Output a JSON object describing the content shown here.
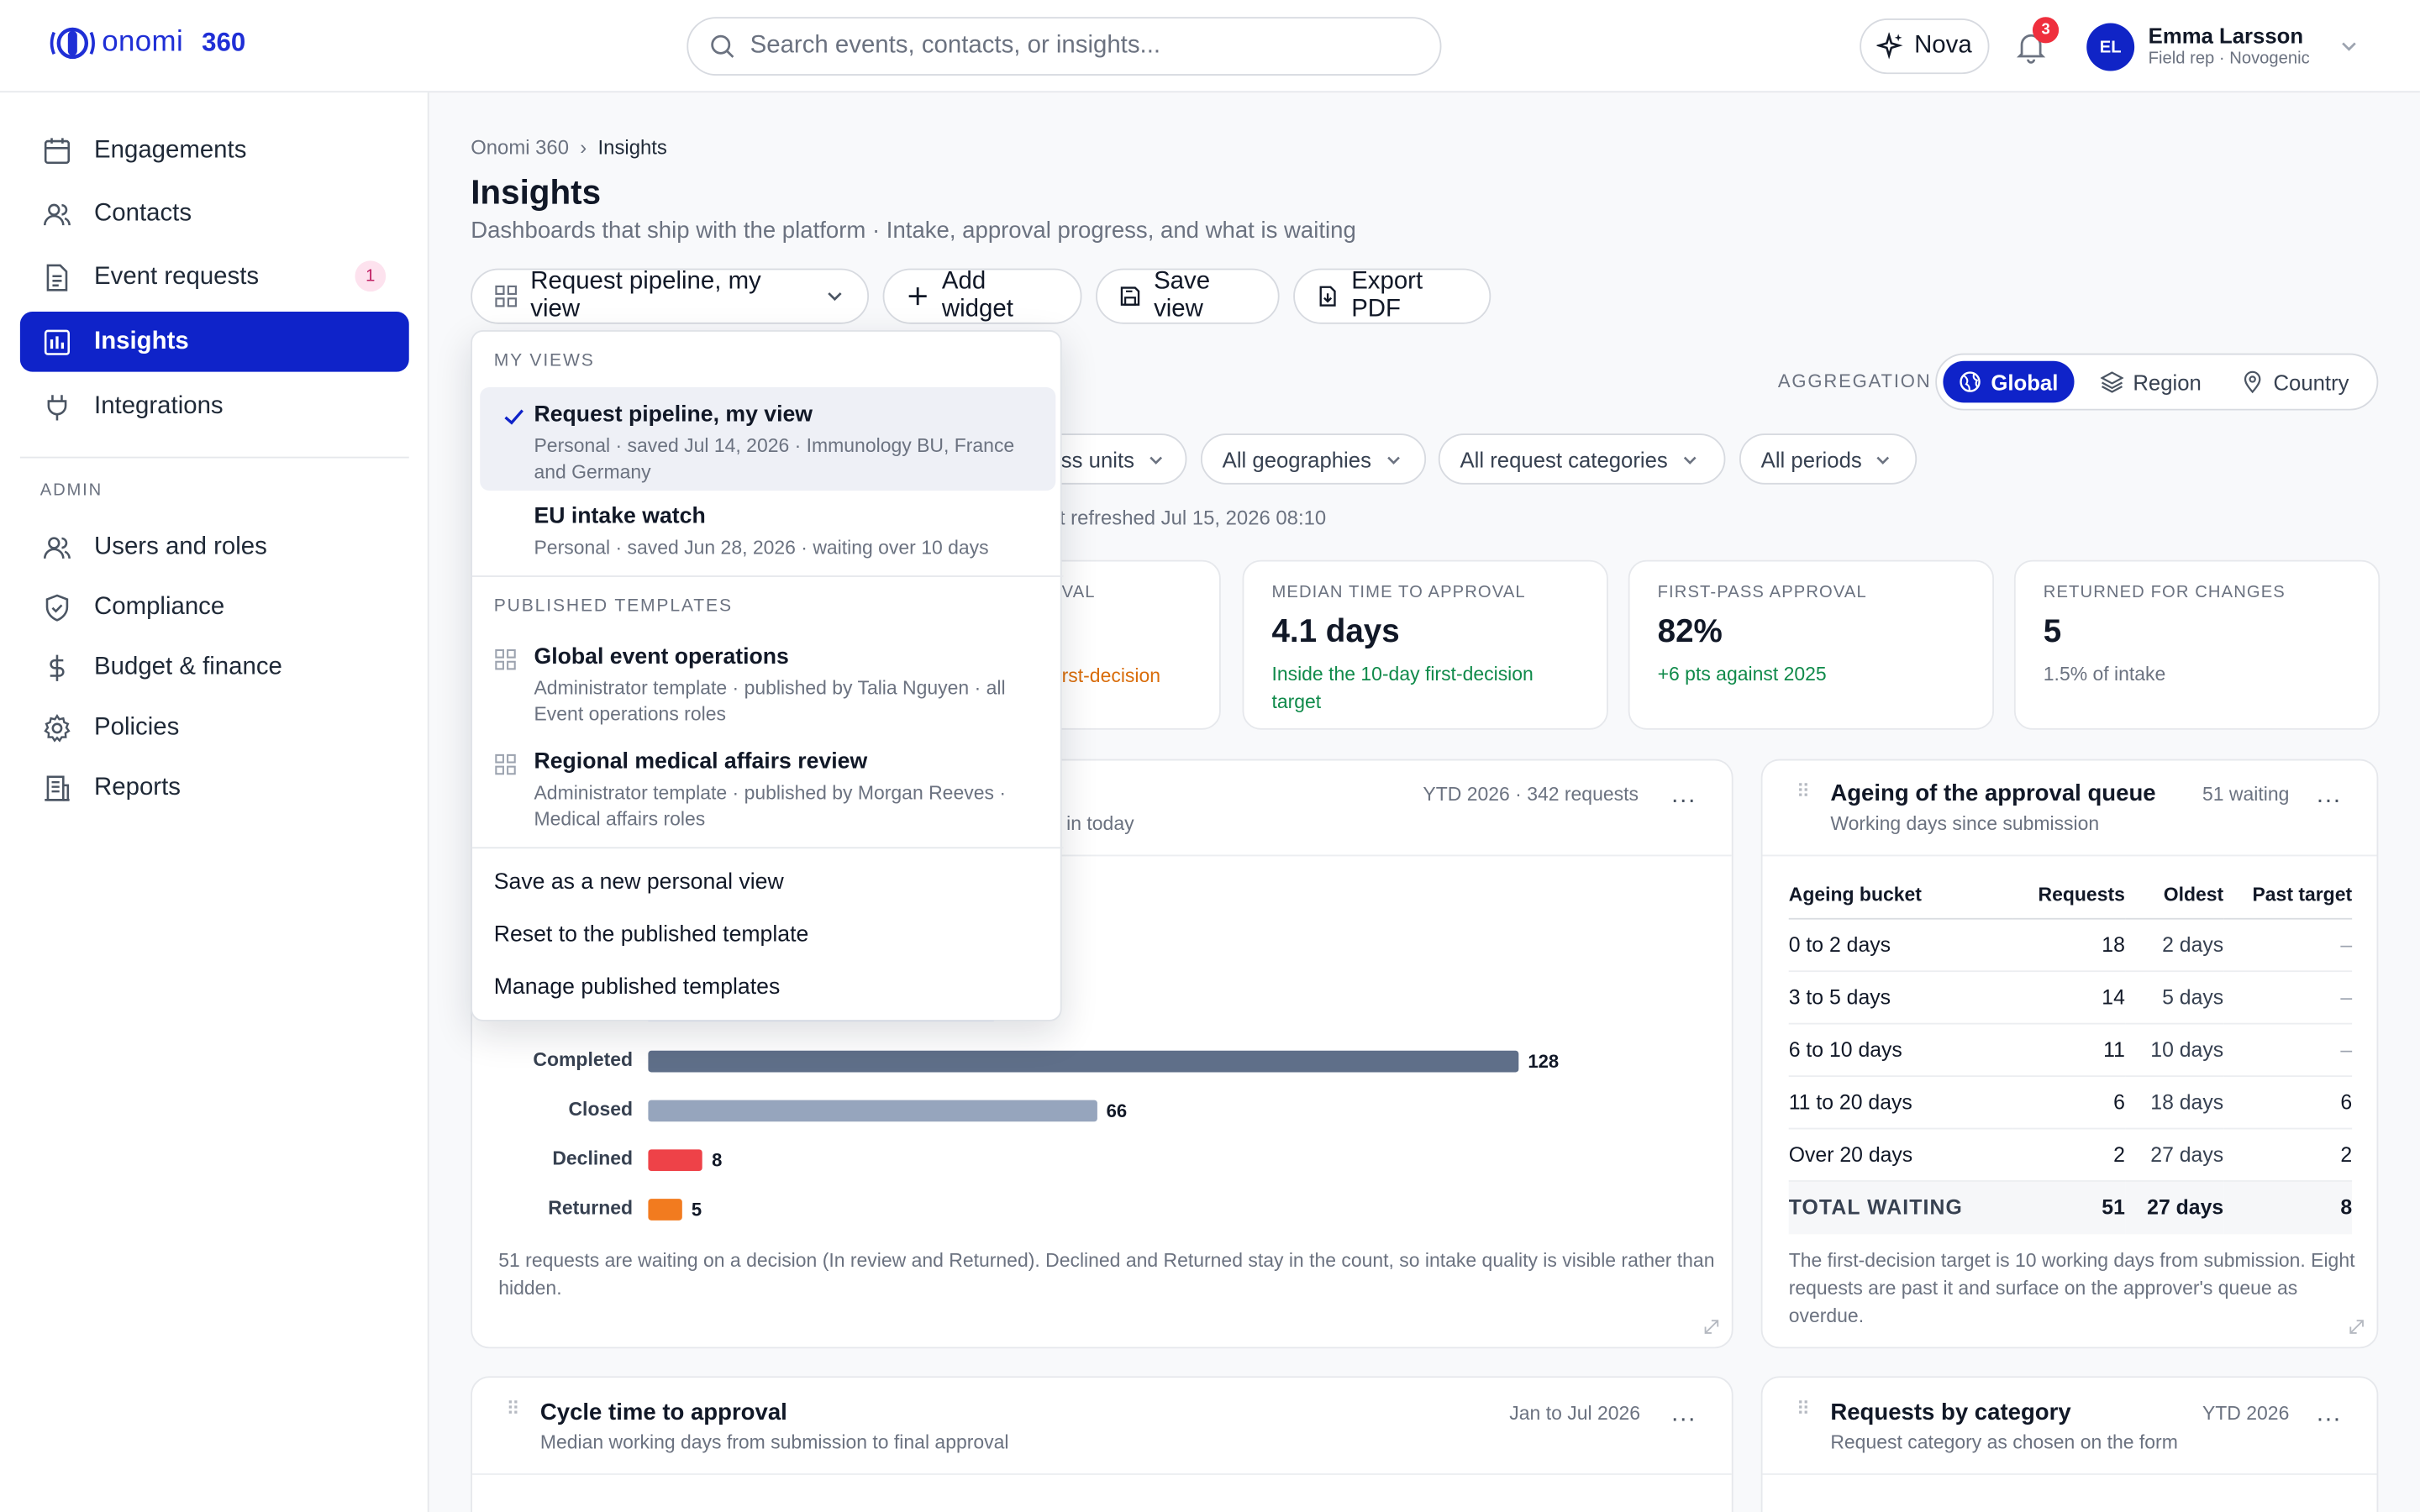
{
  "app": {
    "logo_text": "onomi",
    "logo_suffix": "360"
  },
  "search": {
    "placeholder": "Search events, contacts, or insights..."
  },
  "header": {
    "assistant_label": "Nova",
    "notification_count": "3",
    "user_initials": "EL",
    "user_name": "Emma Larsson",
    "user_role": "Field rep · Novogenic"
  },
  "sidebar": {
    "items": [
      {
        "label": "Engagements",
        "icon": "calendar-icon"
      },
      {
        "label": "Contacts",
        "icon": "users-icon"
      },
      {
        "label": "Event requests",
        "icon": "document-icon",
        "badge": "1"
      },
      {
        "label": "Insights",
        "icon": "bar-chart-icon",
        "active": true
      },
      {
        "label": "Integrations",
        "icon": "plug-icon"
      }
    ],
    "admin_heading": "ADMIN",
    "admin_items": [
      {
        "label": "Users and roles",
        "icon": "users-icon"
      },
      {
        "label": "Compliance",
        "icon": "shield-icon"
      },
      {
        "label": "Budget & finance",
        "icon": "dollar-icon"
      },
      {
        "label": "Policies",
        "icon": "gear-icon"
      },
      {
        "label": "Reports",
        "icon": "building-icon"
      }
    ]
  },
  "page": {
    "breadcrumb_root": "Onomi 360",
    "breadcrumb_current": "Insights",
    "title": "Insights",
    "subtitle": "Dashboards that ship with the platform · Intake, approval progress, and what is waiting"
  },
  "toolbar": {
    "view_selector": "Request pipeline, my view",
    "add_widget": "Add widget",
    "save_view": "Save view",
    "export_pdf": "Export PDF"
  },
  "aggregation": {
    "label": "AGGREGATION",
    "options": [
      "Global",
      "Region",
      "Country"
    ],
    "selected": "Global"
  },
  "filters": {
    "business_units": "ss units",
    "geographies": "All geographies",
    "categories": "All request categories",
    "periods": "All periods"
  },
  "refreshed_text": "st refreshed Jul 15, 2026 08:10",
  "kpis": [
    {
      "label": "VAL",
      "value": "",
      "note": "rst-decision",
      "note_tone": "orange"
    },
    {
      "label": "MEDIAN TIME TO APPROVAL",
      "value": "4.1 days",
      "note": "Inside the 10-day first-decision target",
      "note_tone": "green"
    },
    {
      "label": "FIRST-PASS APPROVAL",
      "value": "82%",
      "note": "+6 pts against 2025",
      "note_tone": "green"
    },
    {
      "label": "RETURNED FOR CHANGES",
      "value": "5",
      "note": "1.5% of intake",
      "note_tone": "grey"
    }
  ],
  "pipeline_card": {
    "meta": "YTD 2026 · 342 requests",
    "sub_fragment": "in today",
    "more": "...",
    "footnote": "51 requests are waiting on a decision (In review and Returned). Declined and Returned stay in the count, so intake quality is visible rather than hidden."
  },
  "chart_data": {
    "type": "bar",
    "orientation": "horizontal",
    "categories": [
      "Completed",
      "Closed",
      "Declined",
      "Returned"
    ],
    "values": [
      128,
      66,
      8,
      5
    ],
    "colors": [
      "#5f6f89",
      "#96a5bd",
      "#ee4248",
      "#f27b1f"
    ],
    "xlim": [
      0,
      128
    ]
  },
  "ageing_card": {
    "title": "Ageing of the approval queue",
    "sub": "Working days since submission",
    "meta": "51 waiting",
    "more": "...",
    "columns": [
      "Ageing bucket",
      "Requests",
      "Oldest",
      "Past target"
    ],
    "rows": [
      {
        "bucket": "0 to 2 days",
        "requests": "18",
        "oldest": "2 days",
        "past": "–"
      },
      {
        "bucket": "3 to 5 days",
        "requests": "14",
        "oldest": "5 days",
        "past": "–"
      },
      {
        "bucket": "6 to 10 days",
        "requests": "11",
        "oldest": "10 days",
        "past": "–"
      },
      {
        "bucket": "11 to 20 days",
        "requests": "6",
        "oldest": "18 days",
        "past": "6"
      },
      {
        "bucket": "Over 20 days",
        "requests": "2",
        "oldest": "27 days",
        "past": "2"
      }
    ],
    "total": {
      "bucket": "TOTAL WAITING",
      "requests": "51",
      "oldest": "27 days",
      "past": "8"
    },
    "footnote": "The first-decision target is 10 working days from submission. Eight requests are past it and surface on the approver's queue as overdue."
  },
  "cycle_card": {
    "title": "Cycle time to approval",
    "sub": "Median working days from submission to final approval",
    "meta": "Jan to Jul 2026",
    "more": "..."
  },
  "category_card": {
    "title": "Requests by category",
    "sub": "Request category as chosen on the form",
    "meta": "YTD 2026",
    "more": "..."
  },
  "view_menu": {
    "my_views_heading": "MY VIEWS",
    "my_views": [
      {
        "title": "Request pipeline, my view",
        "sub": "Personal · saved Jul 14, 2026 · Immunology BU, France and Germany",
        "selected": true
      },
      {
        "title": "EU intake watch",
        "sub": "Personal · saved Jun 28, 2026 · waiting over 10 days"
      }
    ],
    "templates_heading": "PUBLISHED TEMPLATES",
    "templates": [
      {
        "title": "Global event operations",
        "sub": "Administrator template · published by Talia Nguyen · all Event operations roles"
      },
      {
        "title": "Regional medical affairs review",
        "sub": "Administrator template · published by Morgan Reeves · Medical affairs roles"
      }
    ],
    "actions": [
      "Save as a new personal view",
      "Reset to the published template",
      "Manage published templates"
    ]
  }
}
